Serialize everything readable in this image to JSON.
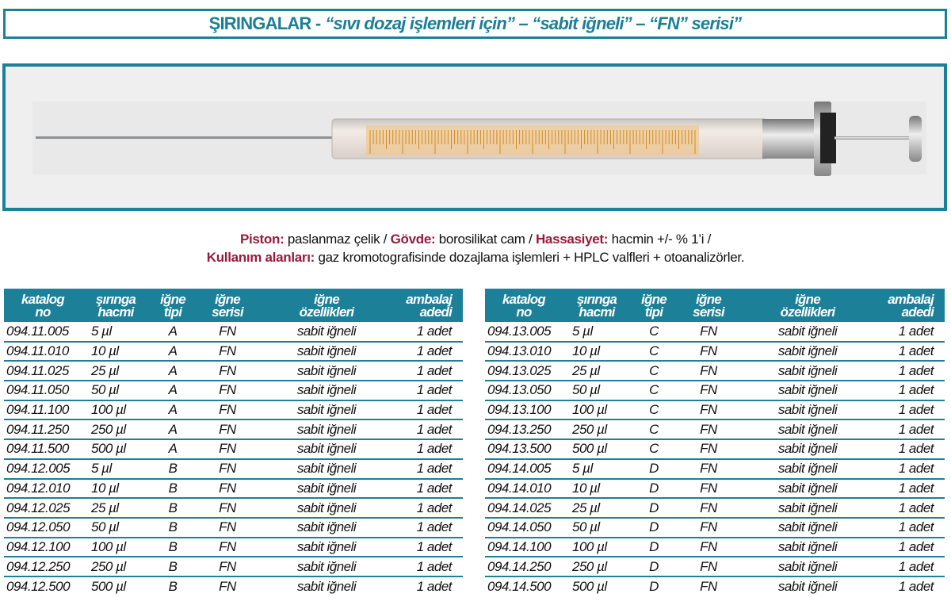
{
  "title": {
    "main": "ŞIRINGALAR -",
    "sub": "“sıvı dozaj işlemleri için” – “sabit iğneli” – “FN” serisi”"
  },
  "colors": {
    "accent": "#1b8098",
    "label": "#9a1a3a"
  },
  "image": {
    "icon": "syringe-photo",
    "scale_labels": [
      "1",
      "2",
      "3",
      "4",
      "5",
      "6",
      "7",
      "8",
      "9",
      "10"
    ]
  },
  "description": {
    "piston_label": "Piston:",
    "piston_value": " paslanmaz çelik / ",
    "govde_label": "Gövde:",
    "govde_value": " borosilikat cam / ",
    "hassasiyet_label": "Hassasiyet:",
    "hassasiyet_value": " hacmin +/- % 1’i /",
    "kullanim_label": "Kullanım alanları:",
    "kullanim_value": " gaz kromotografisinde dozajlama işlemleri + HPLC valfleri + otoanalizörler."
  },
  "columns": [
    [
      "katalog",
      "no"
    ],
    [
      "şırınga",
      "hacmi"
    ],
    [
      "iğne",
      "tipi"
    ],
    [
      "iğne",
      "serisi"
    ],
    [
      "iğne",
      "özellikleri"
    ],
    [
      "ambalaj",
      "adedi"
    ]
  ],
  "tables": [
    {
      "rows": [
        [
          "094.11.005",
          "5 µl",
          "A",
          "FN",
          "sabit iğneli",
          "1 adet"
        ],
        [
          "094.11.010",
          "10 µl",
          "A",
          "FN",
          "sabit iğneli",
          "1 adet"
        ],
        [
          "094.11.025",
          "25 µl",
          "A",
          "FN",
          "sabit iğneli",
          "1 adet"
        ],
        [
          "094.11.050",
          "50 µl",
          "A",
          "FN",
          "sabit iğneli",
          "1 adet"
        ],
        [
          "094.11.100",
          "100 µl",
          "A",
          "FN",
          "sabit iğneli",
          "1 adet"
        ],
        [
          "094.11.250",
          "250 µl",
          "A",
          "FN",
          "sabit iğneli",
          "1 adet"
        ],
        [
          "094.11.500",
          "500 µl",
          "A",
          "FN",
          "sabit iğneli",
          "1 adet"
        ],
        [
          "094.12.005",
          "5 µl",
          "B",
          "FN",
          "sabit iğneli",
          "1 adet"
        ],
        [
          "094.12.010",
          "10 µl",
          "B",
          "FN",
          "sabit iğneli",
          "1 adet"
        ],
        [
          "094.12.025",
          "25 µl",
          "B",
          "FN",
          "sabit iğneli",
          "1 adet"
        ],
        [
          "094.12.050",
          "50 µl",
          "B",
          "FN",
          "sabit iğneli",
          "1 adet"
        ],
        [
          "094.12.100",
          "100 µl",
          "B",
          "FN",
          "sabit iğneli",
          "1 adet"
        ],
        [
          "094.12.250",
          "250 µl",
          "B",
          "FN",
          "sabit iğneli",
          "1 adet"
        ],
        [
          "094.12.500",
          "500 µl",
          "B",
          "FN",
          "sabit iğneli",
          "1 adet"
        ]
      ]
    },
    {
      "rows": [
        [
          "094.13.005",
          "5 µl",
          "C",
          "FN",
          "sabit iğneli",
          "1 adet"
        ],
        [
          "094.13.010",
          "10 µl",
          "C",
          "FN",
          "sabit iğneli",
          "1 adet"
        ],
        [
          "094.13.025",
          "25 µl",
          "C",
          "FN",
          "sabit iğneli",
          "1 adet"
        ],
        [
          "094.13.050",
          "50 µl",
          "C",
          "FN",
          "sabit iğneli",
          "1 adet"
        ],
        [
          "094.13.100",
          "100 µl",
          "C",
          "FN",
          "sabit iğneli",
          "1 adet"
        ],
        [
          "094.13.250",
          "250 µl",
          "C",
          "FN",
          "sabit iğneli",
          "1 adet"
        ],
        [
          "094.13.500",
          "500 µl",
          "C",
          "FN",
          "sabit iğneli",
          "1 adet"
        ],
        [
          "094.14.005",
          "5 µl",
          "D",
          "FN",
          "sabit iğneli",
          "1 adet"
        ],
        [
          "094.14.010",
          "10 µl",
          "D",
          "FN",
          "sabit iğneli",
          "1 adet"
        ],
        [
          "094.14.025",
          "25 µl",
          "D",
          "FN",
          "sabit iğneli",
          "1 adet"
        ],
        [
          "094.14.050",
          "50 µl",
          "D",
          "FN",
          "sabit iğneli",
          "1 adet"
        ],
        [
          "094.14.100",
          "100 µl",
          "D",
          "FN",
          "sabit iğneli",
          "1 adet"
        ],
        [
          "094.14.250",
          "250 µl",
          "D",
          "FN",
          "sabit iğneli",
          "1 adet"
        ],
        [
          "094.14.500",
          "500 µl",
          "D",
          "FN",
          "sabit iğneli",
          "1 adet"
        ]
      ]
    }
  ]
}
